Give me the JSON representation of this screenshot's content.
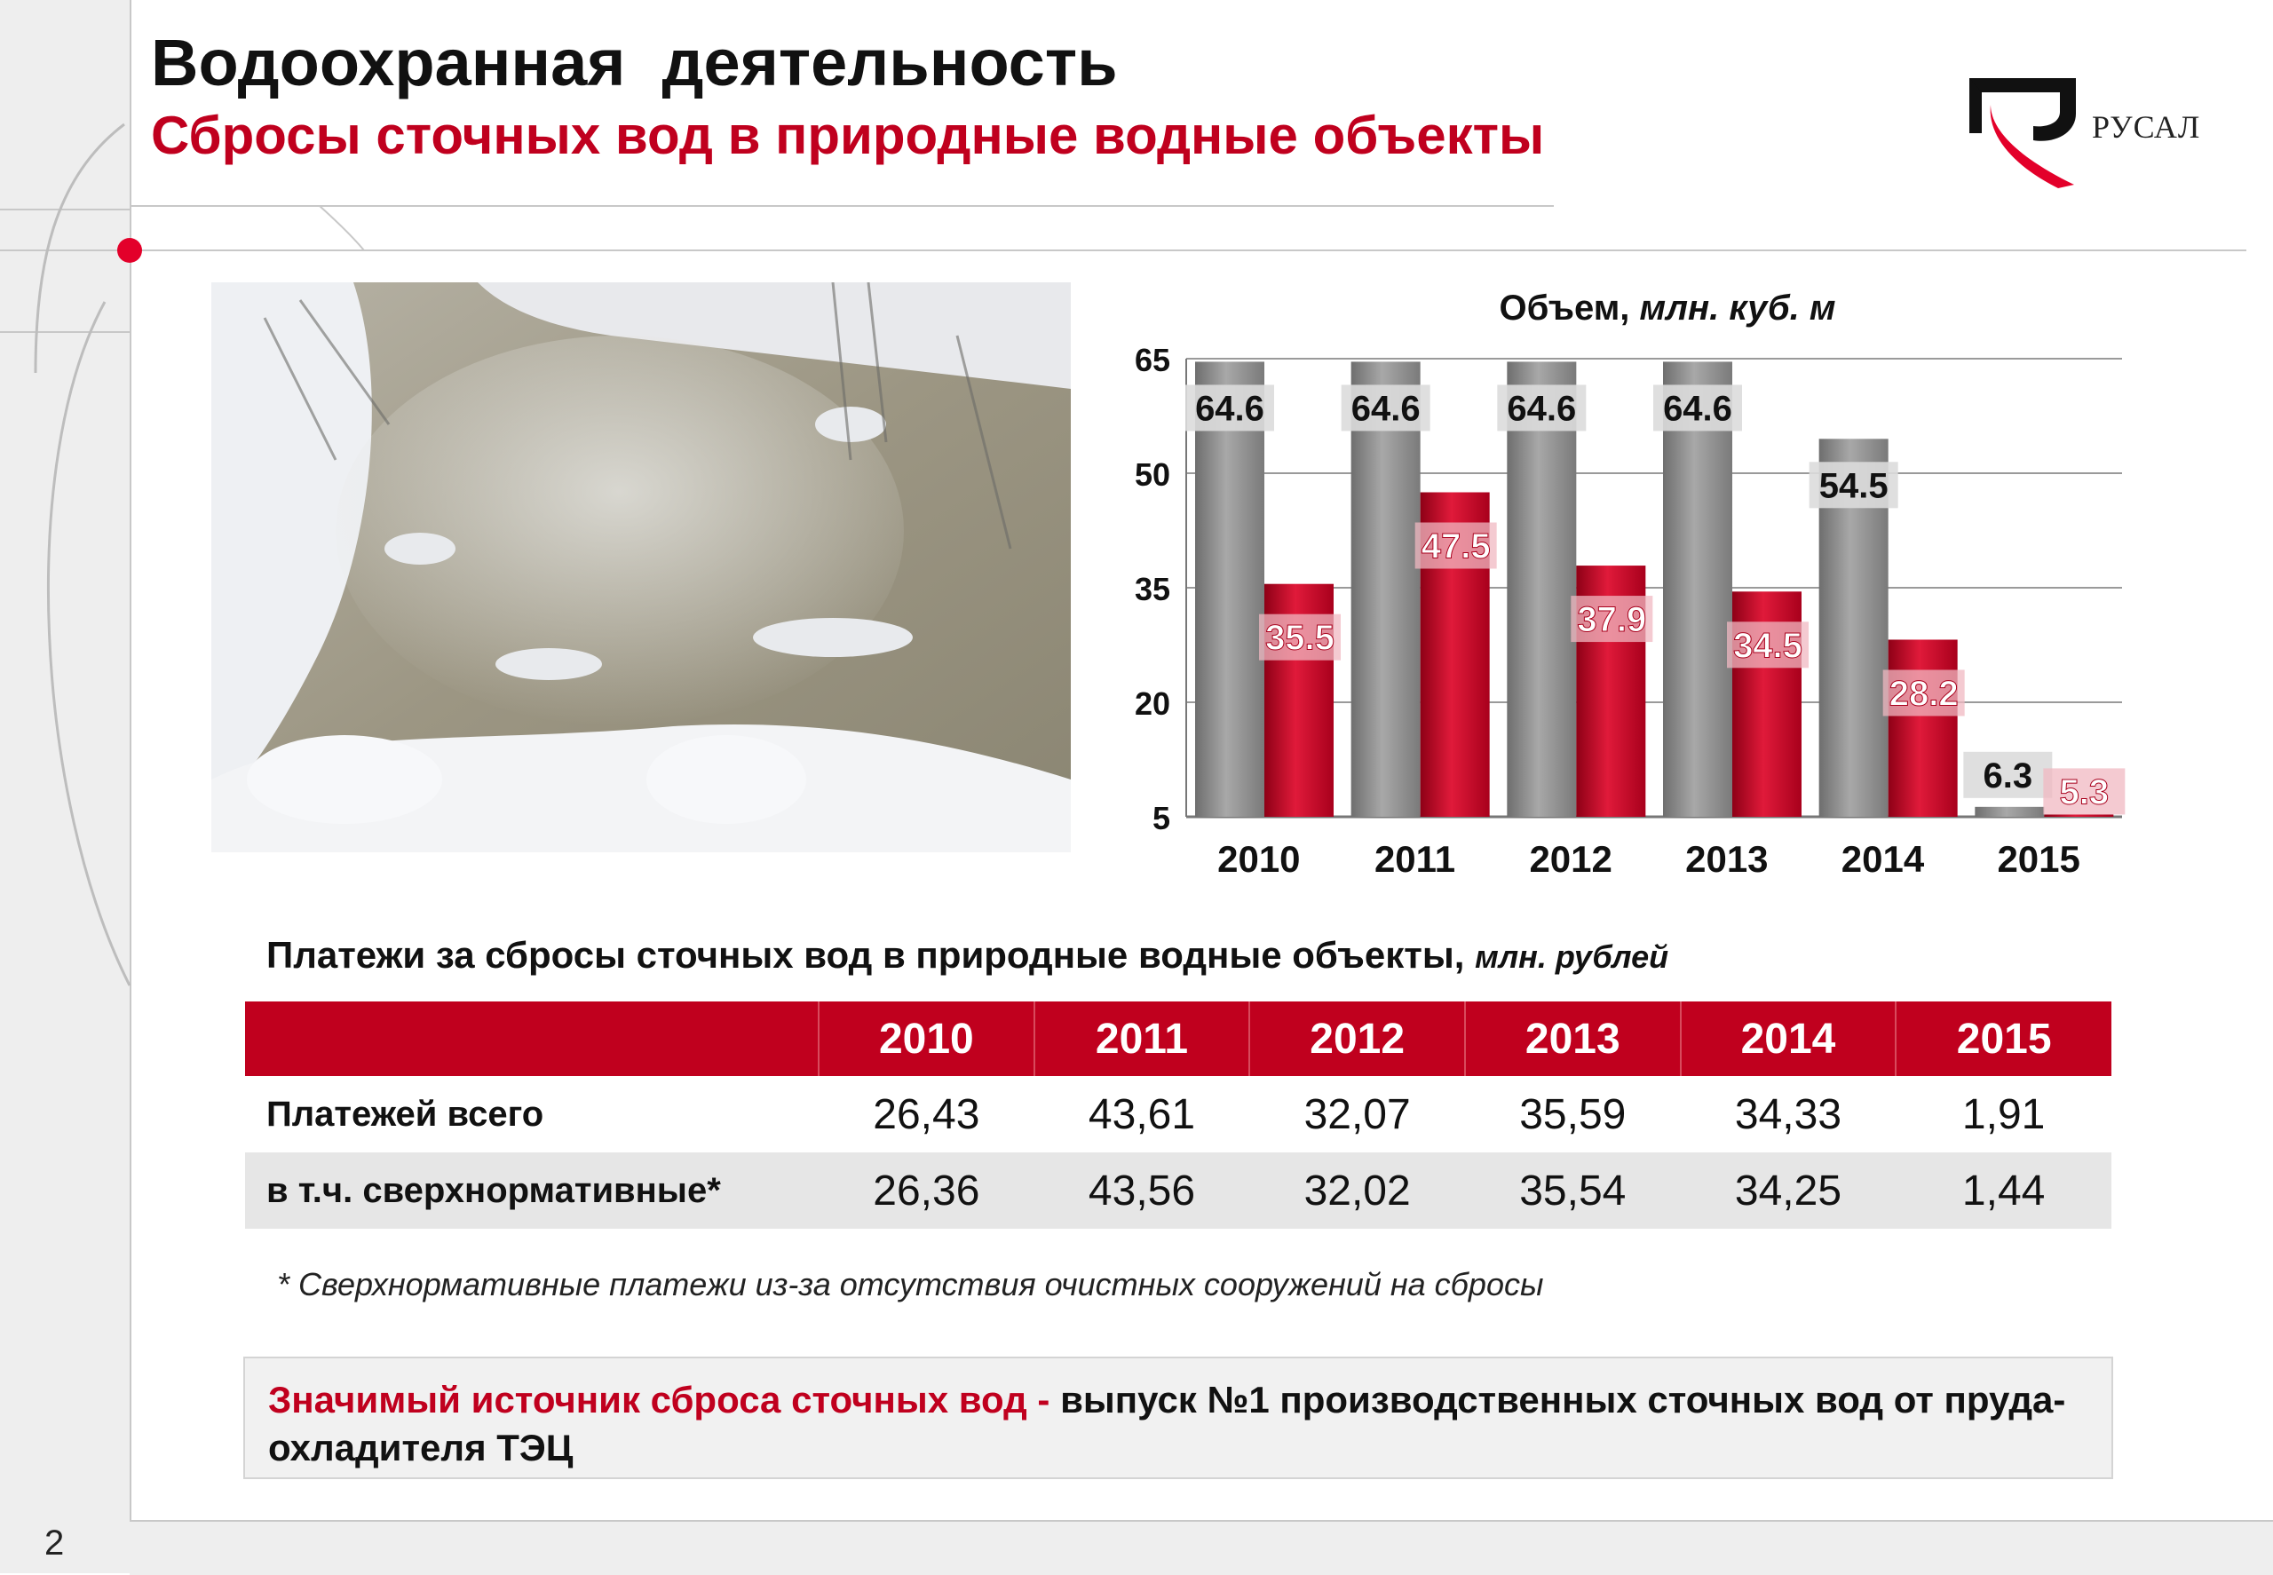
{
  "slide": {
    "title": "Водоохранная  деятельность",
    "subtitle": "Сбросы сточных вод в природные водные объекты",
    "logo_text": "РУСАЛ",
    "page_number": "2",
    "accent_color": "#c0001e"
  },
  "chart_data": {
    "type": "bar",
    "title": "Объем,",
    "title_unit": "млн. куб. м",
    "categories": [
      "2010",
      "2011",
      "2012",
      "2013",
      "2014",
      "2015"
    ],
    "series": [
      {
        "color": "#8c8c8c",
        "values": [
          64.6,
          64.6,
          64.6,
          64.6,
          54.5,
          6.3
        ]
      },
      {
        "color": "#c0001e",
        "values": [
          35.5,
          47.5,
          37.9,
          34.5,
          28.2,
          5.3
        ]
      }
    ],
    "ylim": [
      5,
      65
    ],
    "yticks": [
      5,
      20,
      35,
      50,
      65
    ],
    "grid": true,
    "legend": "none"
  },
  "payments": {
    "title": "Платежи за сбросы сточных вод в природные водные объекты,",
    "unit": "млн. рублей",
    "columns": [
      "2010",
      "2011",
      "2012",
      "2013",
      "2014",
      "2015"
    ],
    "rows": [
      {
        "label": "Платежей всего",
        "values": [
          "26,43",
          "43,61",
          "32,07",
          "35,59",
          "34,33",
          "1,91"
        ]
      },
      {
        "label": "в т.ч. сверхнормативные*",
        "values": [
          "26,36",
          "43,56",
          "32,02",
          "35,54",
          "34,25",
          "1,44"
        ]
      }
    ]
  },
  "footnote": "* Сверхнормативные платежи из-за отсутствия очистных сооружений на сбросы",
  "callout": {
    "highlight": "Значимый источник сброса сточных вод - ",
    "text": "выпуск №1 производственных сточных вод от пруда-охладителя ТЭЦ"
  }
}
